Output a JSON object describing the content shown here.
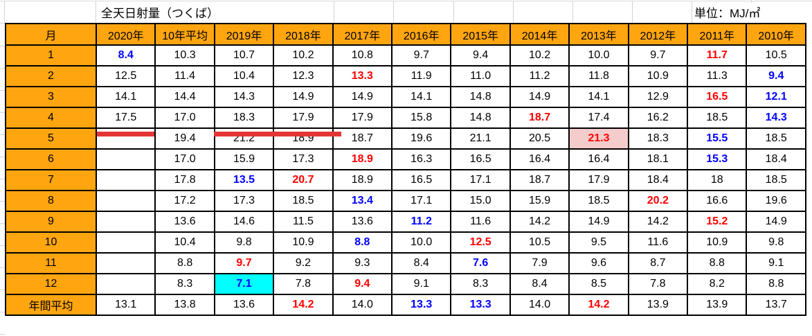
{
  "page": {
    "title": "全天日射量（つくば）",
    "unit_label": "単位：MJ/㎡"
  },
  "table": {
    "month_header": "月",
    "year_columns": [
      "2020年",
      "10年平均",
      "2019年",
      "2018年",
      "2017年",
      "2016年",
      "2015年",
      "2014年",
      "2013年",
      "2012年",
      "2011年",
      "2010年"
    ],
    "rows": [
      {
        "month": "1",
        "cells": [
          [
            "8.4",
            "min"
          ],
          [
            "10.3"
          ],
          [
            "10.7"
          ],
          [
            "10.2"
          ],
          [
            "10.8"
          ],
          [
            "9.7"
          ],
          [
            "9.4"
          ],
          [
            "10.2"
          ],
          [
            "10.0"
          ],
          [
            "9.7"
          ],
          [
            "11.7",
            "max"
          ],
          [
            "10.5"
          ]
        ]
      },
      {
        "month": "2",
        "cells": [
          [
            "12.5"
          ],
          [
            "11.4"
          ],
          [
            "10.4"
          ],
          [
            "12.3"
          ],
          [
            "13.3",
            "max"
          ],
          [
            "11.9"
          ],
          [
            "11.0"
          ],
          [
            "11.2"
          ],
          [
            "11.8"
          ],
          [
            "10.9"
          ],
          [
            "11.3"
          ],
          [
            "9.4",
            "min"
          ]
        ]
      },
      {
        "month": "3",
        "cells": [
          [
            "14.1"
          ],
          [
            "14.4"
          ],
          [
            "14.3"
          ],
          [
            "14.9"
          ],
          [
            "14.9"
          ],
          [
            "14.1"
          ],
          [
            "14.8"
          ],
          [
            "14.9"
          ],
          [
            "14.1"
          ],
          [
            "12.9"
          ],
          [
            "16.5",
            "max"
          ],
          [
            "12.1",
            "min"
          ]
        ]
      },
      {
        "month": "4",
        "cells": [
          [
            "17.5"
          ],
          [
            "17.0"
          ],
          [
            "18.3"
          ],
          [
            "17.9"
          ],
          [
            "17.9"
          ],
          [
            "15.8"
          ],
          [
            "14.8"
          ],
          [
            "18.7",
            "max"
          ],
          [
            "17.4"
          ],
          [
            "16.2"
          ],
          [
            "18.5"
          ],
          [
            "14.3",
            "min"
          ]
        ]
      },
      {
        "month": "5",
        "cells": [
          [
            ""
          ],
          [
            "19.4"
          ],
          [
            "21.2"
          ],
          [
            "18.9"
          ],
          [
            "18.7"
          ],
          [
            "19.6"
          ],
          [
            "21.1"
          ],
          [
            "20.5"
          ],
          [
            "21.3",
            "max-hl"
          ],
          [
            "18.3"
          ],
          [
            "15.5",
            "min"
          ],
          [
            "18.5"
          ]
        ]
      },
      {
        "month": "6",
        "cells": [
          [
            ""
          ],
          [
            "17.0"
          ],
          [
            "15.9"
          ],
          [
            "17.3"
          ],
          [
            "18.9",
            "max"
          ],
          [
            "16.3"
          ],
          [
            "16.5"
          ],
          [
            "16.4"
          ],
          [
            "16.4"
          ],
          [
            "18.1"
          ],
          [
            "15.3",
            "min"
          ],
          [
            "18.4"
          ]
        ]
      },
      {
        "month": "7",
        "cells": [
          [
            ""
          ],
          [
            "17.8"
          ],
          [
            "13.5",
            "min"
          ],
          [
            "20.7",
            "max"
          ],
          [
            "18.9"
          ],
          [
            "16.5"
          ],
          [
            "17.1"
          ],
          [
            "18.7"
          ],
          [
            "17.9"
          ],
          [
            "18.4"
          ],
          [
            "18"
          ],
          [
            "18.5"
          ]
        ]
      },
      {
        "month": "8",
        "cells": [
          [
            ""
          ],
          [
            "17.2"
          ],
          [
            "17.3"
          ],
          [
            "18.5"
          ],
          [
            "13.4",
            "min"
          ],
          [
            "17.1"
          ],
          [
            "15.0"
          ],
          [
            "15.9"
          ],
          [
            "18.5"
          ],
          [
            "20.2",
            "max"
          ],
          [
            "16.6"
          ],
          [
            "19.6"
          ]
        ]
      },
      {
        "month": "9",
        "cells": [
          [
            ""
          ],
          [
            "13.6"
          ],
          [
            "14.6"
          ],
          [
            "11.5"
          ],
          [
            "13.6"
          ],
          [
            "11.2",
            "min"
          ],
          [
            "11.6"
          ],
          [
            "14.2"
          ],
          [
            "14.9"
          ],
          [
            "14.2"
          ],
          [
            "15.2",
            "max"
          ],
          [
            "14.9"
          ]
        ]
      },
      {
        "month": "10",
        "cells": [
          [
            ""
          ],
          [
            "10.4"
          ],
          [
            "9.8"
          ],
          [
            "10.9"
          ],
          [
            "8.8",
            "min"
          ],
          [
            "10.0"
          ],
          [
            "12.5",
            "max"
          ],
          [
            "10.5"
          ],
          [
            "9.5"
          ],
          [
            "11.6"
          ],
          [
            "10.9"
          ],
          [
            "9.8"
          ]
        ]
      },
      {
        "month": "11",
        "cells": [
          [
            ""
          ],
          [
            "8.8"
          ],
          [
            "9.7",
            "max"
          ],
          [
            "9.2"
          ],
          [
            "9.3"
          ],
          [
            "8.4"
          ],
          [
            "7.6",
            "min"
          ],
          [
            "7.9"
          ],
          [
            "9.6"
          ],
          [
            "8.7"
          ],
          [
            "8.8"
          ],
          [
            "9.1"
          ]
        ]
      },
      {
        "month": "12",
        "cells": [
          [
            ""
          ],
          [
            "8.3"
          ],
          [
            "7.1",
            "min-hl"
          ],
          [
            "7.8"
          ],
          [
            "9.4",
            "max"
          ],
          [
            "9.1"
          ],
          [
            "8.3"
          ],
          [
            "8.4"
          ],
          [
            "8.5"
          ],
          [
            "7.8"
          ],
          [
            "8.2"
          ],
          [
            "8.8"
          ]
        ]
      },
      {
        "month": "年間平均",
        "cells": [
          [
            "13.1"
          ],
          [
            "13.8"
          ],
          [
            "13.6"
          ],
          [
            "14.2",
            "max"
          ],
          [
            "14.0"
          ],
          [
            "13.3",
            "min"
          ],
          [
            "13.3",
            "min"
          ],
          [
            "14.0"
          ],
          [
            "14.2",
            "max"
          ],
          [
            "13.9"
          ],
          [
            "13.9"
          ],
          [
            "13.7"
          ]
        ]
      }
    ]
  },
  "colors": {
    "header_bg": "#FFA510",
    "max_value_text": "#FF0000",
    "min_value_text": "#0000FF",
    "min_highlight_bg": "#00FFFF",
    "max_highlight_bg": "#F5CCCC",
    "underline_annotation": "#E43535",
    "grid_border": "#000000",
    "sheet_gridline": "#D2D2D2"
  },
  "annotations": {
    "underlined_cells": [
      "2020年 4月",
      "2019年 4月",
      "2018年 4月"
    ]
  }
}
